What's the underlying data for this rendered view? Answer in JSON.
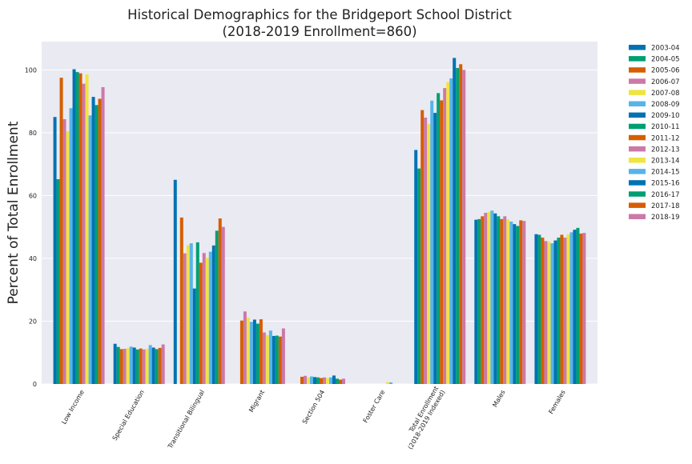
{
  "chart_data": {
    "type": "bar",
    "title": "Historical Demographics for the Bridgeport School District",
    "subtitle": "(2018-2019 Enrollment=860)",
    "xlabel": "",
    "ylabel": "Percent of Total Enrollment",
    "ylim": [
      0,
      109
    ],
    "yticks": [
      "0",
      "20",
      "40",
      "60",
      "80",
      "100"
    ],
    "grid": true,
    "legend_position": "outside-right-top",
    "categories": [
      "Low Income",
      "Special Education",
      "Transitional Bilingual",
      "Migrant",
      "Section 504",
      "Foster Care",
      "Total Enrollment (2018-2019 Indexed)",
      "Males",
      "Females"
    ],
    "category_lines": [
      [
        "Low Income"
      ],
      [
        "Special Education"
      ],
      [
        "Transitional Bilingual"
      ],
      [
        "Migrant"
      ],
      [
        "Section 504"
      ],
      [
        "Foster Care"
      ],
      [
        "Total Enrollment",
        "(2018-2019 Indexed)"
      ],
      [
        "Males"
      ],
      [
        "Females"
      ]
    ],
    "series": [
      {
        "name": "2003-04",
        "color": "#0072B2",
        "values": [
          85,
          12.8,
          65,
          null,
          null,
          null,
          74.5,
          52.3,
          47.7
        ]
      },
      {
        "name": "2004-05",
        "color": "#009E73",
        "values": [
          65.2,
          11.8,
          null,
          null,
          null,
          null,
          68.6,
          52.5,
          47.5
        ]
      },
      {
        "name": "2005-06",
        "color": "#D55E00",
        "values": [
          97.5,
          11.1,
          53,
          20.2,
          2.3,
          null,
          87.2,
          53.4,
          46.6
        ]
      },
      {
        "name": "2006-07",
        "color": "#CC79A7",
        "values": [
          84.3,
          11.2,
          41.6,
          23.1,
          2.6,
          null,
          84.8,
          54.5,
          45.5
        ]
      },
      {
        "name": "2007-08",
        "color": "#F0E442",
        "values": [
          80.5,
          11.4,
          44.2,
          21.1,
          2.1,
          null,
          82.8,
          54.8,
          45.2
        ]
      },
      {
        "name": "2008-09",
        "color": "#56B4E9",
        "values": [
          87.8,
          11.9,
          44.8,
          19.8,
          2.4,
          null,
          90.2,
          55.2,
          44.8
        ]
      },
      {
        "name": "2009-10",
        "color": "#0072B2",
        "values": [
          100.2,
          11.6,
          30.4,
          20.5,
          2.2,
          null,
          86.3,
          54.3,
          45.7
        ]
      },
      {
        "name": "2010-11",
        "color": "#009E73",
        "values": [
          99.3,
          11,
          45.1,
          19.2,
          2.1,
          null,
          92.6,
          53.4,
          46.6
        ]
      },
      {
        "name": "2011-12",
        "color": "#D55E00",
        "values": [
          98.9,
          11.3,
          38.6,
          20.6,
          1.9,
          null,
          90.3,
          52.5,
          47.5
        ]
      },
      {
        "name": "2012-13",
        "color": "#CC79A7",
        "values": [
          95.6,
          11,
          41.7,
          16.4,
          2.1,
          null,
          94.2,
          53.4,
          46.6
        ]
      },
      {
        "name": "2013-14",
        "color": "#F0E442",
        "values": [
          98.5,
          11.2,
          40.2,
          15.6,
          1.9,
          0.6,
          96.1,
          52.4,
          47.6
        ]
      },
      {
        "name": "2014-15",
        "color": "#56B4E9",
        "values": [
          85.5,
          12.4,
          42.1,
          17,
          2.1,
          0.5,
          97.3,
          51.7,
          48.3
        ]
      },
      {
        "name": "2015-16",
        "color": "#0072B2",
        "values": [
          91.4,
          11.6,
          44.1,
          15.3,
          2.7,
          null,
          103.8,
          50.9,
          49.1
        ]
      },
      {
        "name": "2016-17",
        "color": "#009E73",
        "values": [
          88.8,
          11.1,
          48.8,
          15.4,
          1.7,
          null,
          100.6,
          50.3,
          49.7
        ]
      },
      {
        "name": "2017-18",
        "color": "#D55E00",
        "values": [
          90.8,
          11.5,
          52.7,
          15.1,
          1.4,
          null,
          101.8,
          52.1,
          47.9
        ]
      },
      {
        "name": "2018-19",
        "color": "#CC79A7",
        "values": [
          94.5,
          12.6,
          50,
          17.7,
          1.7,
          null,
          100,
          51.9,
          48.1
        ]
      }
    ],
    "colors": {
      "plot_background": "#EAEAF2",
      "grid": "#FFFFFF"
    }
  }
}
